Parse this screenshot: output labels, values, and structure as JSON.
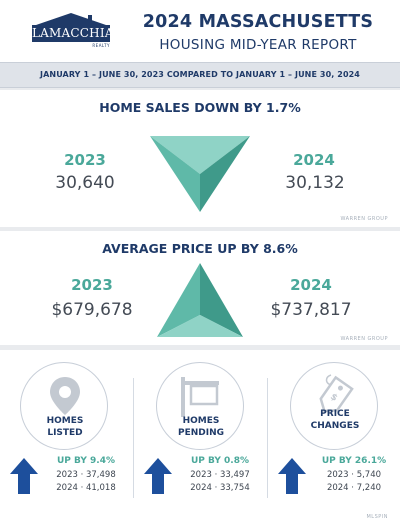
{
  "header": {
    "logo_text": "LAMACCHIA",
    "logo_sub": "REALTY",
    "title_line1": "2024 MASSACHUSETTS",
    "title_line2": "HOUSING MID-YEAR REPORT"
  },
  "date_range": "JANUARY 1 – JUNE 30, 2023 COMPARED TO JANUARY 1 – JUNE 30, 2024",
  "home_sales": {
    "heading": "HOME SALES DOWN BY 1.7%",
    "year_a": "2023",
    "value_a": "30,640",
    "year_b": "2024",
    "value_b": "30,132",
    "source": "WARREN GROUP"
  },
  "average_price": {
    "heading": "AVERAGE PRICE UP BY 8.6%",
    "year_a": "2023",
    "value_a": "$679,678",
    "year_b": "2024",
    "value_b": "$737,817",
    "source": "WARREN GROUP"
  },
  "stats": [
    {
      "label_line1": "HOMES",
      "label_line2": "LISTED",
      "change": "UP BY 9.4%",
      "line_a": "2023 · 37,498",
      "line_b": "2024 · 41,018",
      "icon": "map-pin-icon"
    },
    {
      "label_line1": "HOMES",
      "label_line2": "PENDING",
      "change": "UP BY 0.8%",
      "line_a": "2023 · 33,497",
      "line_b": "2024 · 33,754",
      "icon": "for-sale-sign-icon"
    },
    {
      "label_line1": "PRICE",
      "label_line2": "CHANGES",
      "change": "UP BY 26.1%",
      "line_a": "2023 · 5,740",
      "line_b": "2024 · 7,240",
      "icon": "price-tag-icon"
    }
  ],
  "bottom_source": "MLSPIN",
  "colors": {
    "navy": "#1f3a68",
    "teal": "#4aa89a",
    "arrow_blue": "#1d4f9c"
  }
}
